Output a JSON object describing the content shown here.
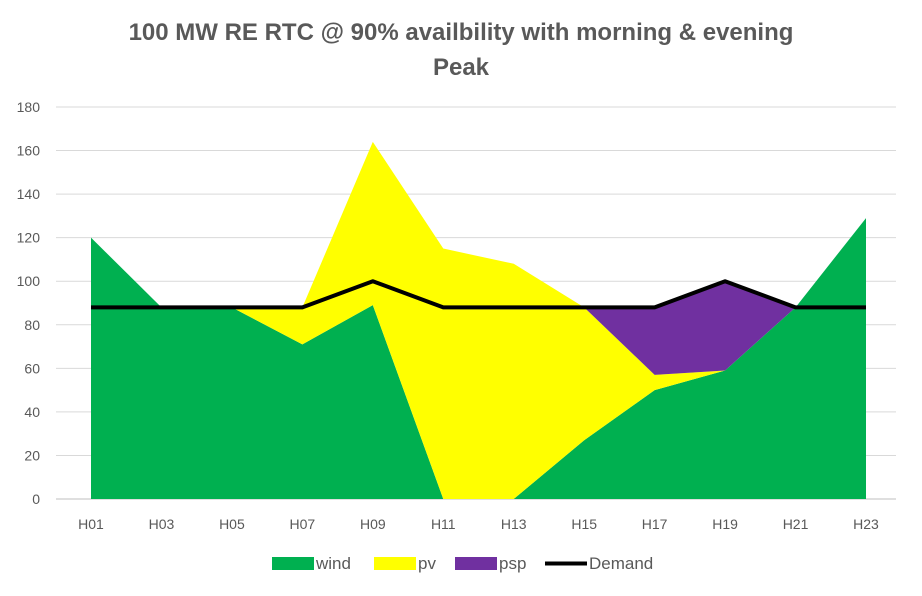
{
  "chart_data": {
    "type": "area",
    "stacked": true,
    "title_line1": "100 MW RE RTC @ 90% availbility with morning & evening",
    "title_line2": "Peak",
    "categories": [
      "H01",
      "H03",
      "H05",
      "H07",
      "H09",
      "H11",
      "H13",
      "H15",
      "H17",
      "H19",
      "H21",
      "H23"
    ],
    "ylim": [
      0,
      180
    ],
    "yticks": [
      0,
      20,
      40,
      60,
      80,
      100,
      120,
      140,
      160,
      180
    ],
    "grid": true,
    "legend_position": "bottom",
    "series": [
      {
        "name": "wind",
        "color": "#00b050",
        "values": [
          120,
          88,
          88,
          71,
          89,
          0,
          0,
          27,
          50,
          59,
          88,
          129
        ]
      },
      {
        "name": "pv",
        "color": "#ffff00",
        "values": [
          0,
          0,
          0,
          17,
          75,
          115,
          108,
          61,
          7,
          0,
          0,
          0
        ]
      },
      {
        "name": "psp",
        "color": "#7030a0",
        "values": [
          0,
          0,
          0,
          0,
          0,
          0,
          0,
          0,
          31,
          41,
          0,
          0
        ]
      }
    ],
    "line_series": {
      "name": "Demand",
      "color": "#000000",
      "values": [
        88,
        88,
        88,
        88,
        100,
        88,
        88,
        88,
        88,
        100,
        88,
        88
      ]
    }
  }
}
